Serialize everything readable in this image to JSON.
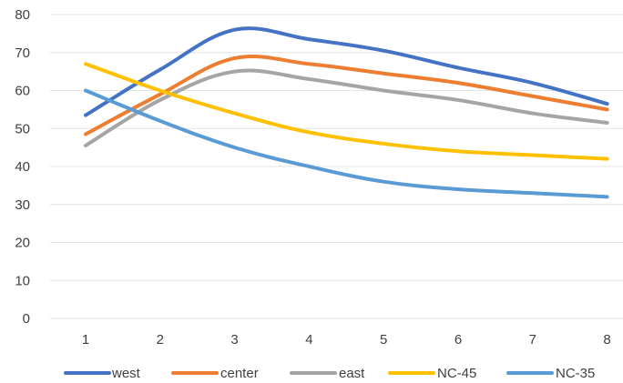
{
  "chart_data": {
    "type": "line",
    "title": "",
    "xlabel": "",
    "ylabel": "",
    "x": [
      "1",
      "2",
      "3",
      "4",
      "5",
      "6",
      "7",
      "8"
    ],
    "ylim": [
      0,
      80
    ],
    "yticks": [
      "0",
      "10",
      "20",
      "30",
      "40",
      "50",
      "60",
      "70",
      "80"
    ],
    "grid": true,
    "legend_position": "bottom",
    "series": [
      {
        "name": "west",
        "color": "#4472C4",
        "values": [
          53.5,
          65.5,
          76,
          73.5,
          70.5,
          66,
          62,
          56.5
        ]
      },
      {
        "name": "center",
        "color": "#ED7D31",
        "values": [
          48.5,
          59,
          68.5,
          67,
          64.5,
          62,
          58.5,
          55
        ]
      },
      {
        "name": "east",
        "color": "#A5A5A5",
        "values": [
          45.5,
          57.5,
          65,
          63,
          60,
          57.5,
          54,
          51.5
        ]
      },
      {
        "name": "NC-45",
        "color": "#FFC000",
        "values": [
          67,
          60,
          54,
          49,
          46,
          44,
          43,
          42
        ]
      },
      {
        "name": "NC-35",
        "color": "#5B9BD5",
        "values": [
          60,
          52,
          45,
          40,
          36,
          34,
          33,
          32
        ]
      }
    ]
  }
}
